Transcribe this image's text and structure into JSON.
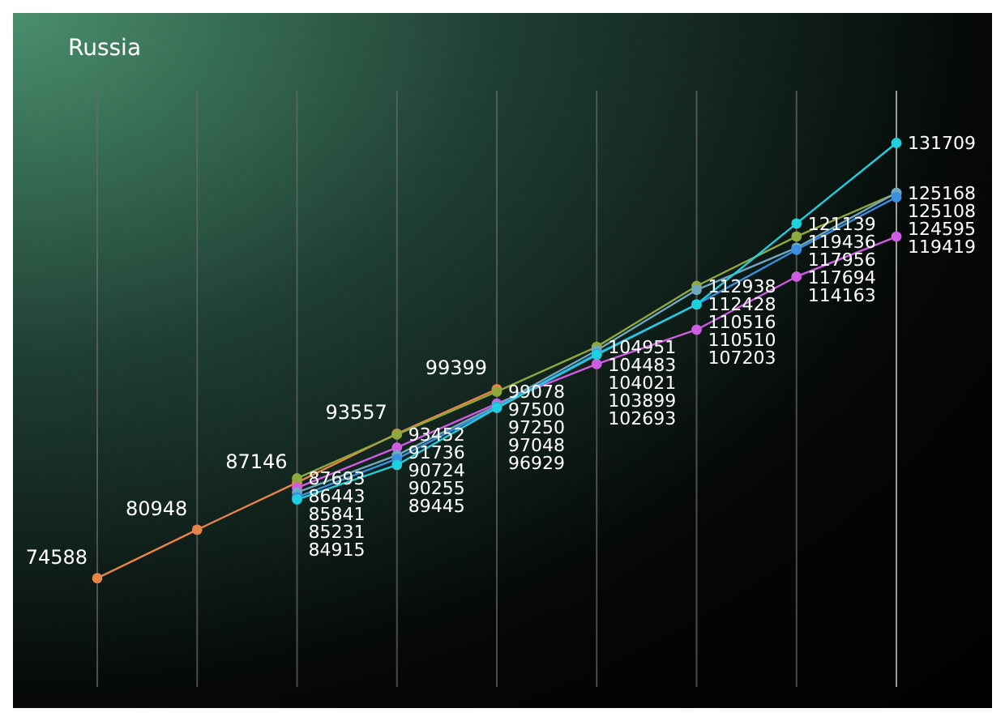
{
  "chart_data": {
    "type": "line",
    "title": "Russia",
    "categories": [
      null,
      null,
      null,
      null,
      null,
      null,
      null,
      null,
      null
    ],
    "series": [
      {
        "color": "#e8844a",
        "values": [
          74588,
          80948,
          87146,
          93557,
          99399,
          null,
          null,
          null,
          null
        ]
      },
      {
        "color": "#8fa83c",
        "values": [
          null,
          null,
          87693,
          93452,
          99078,
          104951,
          112938,
          119436,
          125108
        ]
      },
      {
        "color": "#d05ce3",
        "values": [
          null,
          null,
          86443,
          91736,
          97500,
          102693,
          107203,
          114163,
          119419
        ]
      },
      {
        "color": "#6fa8c0",
        "values": [
          null,
          null,
          85841,
          90724,
          97250,
          104483,
          112428,
          117956,
          125168
        ]
      },
      {
        "color": "#3a8fe0",
        "values": [
          null,
          null,
          85231,
          90255,
          97048,
          104021,
          110510,
          117694,
          124595
        ]
      },
      {
        "color": "#1fd0e0",
        "values": [
          null,
          null,
          84915,
          89445,
          96929,
          103899,
          110516,
          121139,
          131709
        ]
      }
    ],
    "grid": "x",
    "tick_labels": false,
    "marker": "circle",
    "data_labels": true
  }
}
